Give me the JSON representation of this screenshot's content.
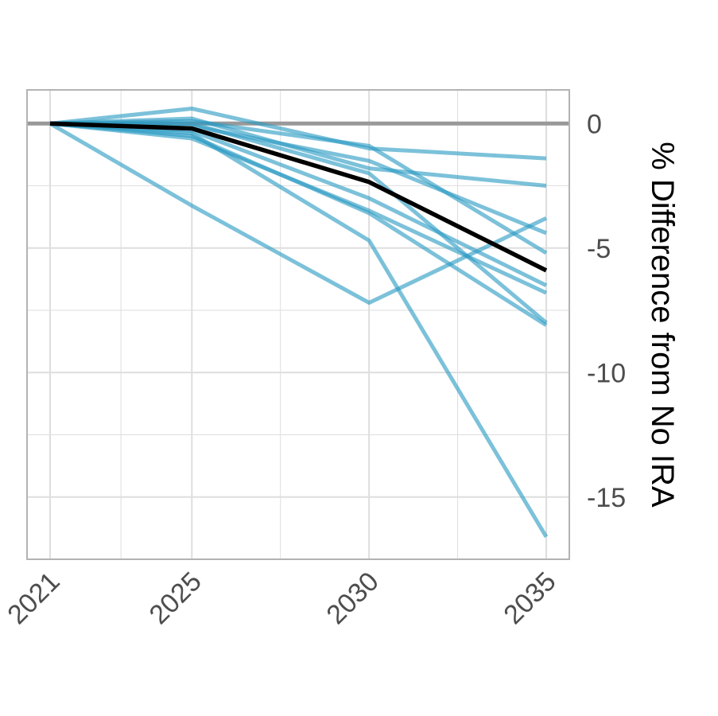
{
  "chart_data": {
    "type": "line",
    "title": "",
    "xlabel": "",
    "ylabel": "% Difference from No IRA",
    "x": [
      2021,
      2025,
      2030,
      2035
    ],
    "x_tick_labels": [
      "2021",
      "2025",
      "2030",
      "2035"
    ],
    "y_ticks": [
      0,
      -5,
      -10,
      -15
    ],
    "y_tick_labels": [
      "0",
      "-5",
      "-10",
      "-15"
    ],
    "xlim": [
      2020.35,
      2035.65
    ],
    "ylim": [
      -17.5,
      1.35
    ],
    "y_axis_position": "right",
    "grid": true,
    "legend": "none",
    "reference_line": {
      "y": 0,
      "color": "#999999"
    },
    "colors": {
      "models": "#2b9bc4",
      "average": "#000000",
      "grid": "#dedede",
      "frame": "#b3b3b3"
    },
    "series": [
      {
        "values": [
          0,
          0.6,
          -1.0,
          -1.4
        ]
      },
      {
        "values": [
          0,
          0.2,
          -1.8,
          -2.5
        ]
      },
      {
        "values": [
          0,
          -0.1,
          -1.5,
          -4.4
        ]
      },
      {
        "values": [
          0,
          0.1,
          -0.9,
          -5.2
        ]
      },
      {
        "values": [
          0,
          -0.3,
          -3.0,
          -6.5
        ]
      },
      {
        "values": [
          0,
          -0.6,
          -3.5,
          -6.8
        ]
      },
      {
        "values": [
          0,
          -0.5,
          -3.6,
          -8.1
        ]
      },
      {
        "values": [
          0,
          -0.4,
          -4.7,
          -16.6
        ]
      },
      {
        "values": [
          0,
          -3.3,
          -7.2,
          -3.8
        ]
      },
      {
        "values": [
          0,
          0.0,
          -2.0,
          -8.0
        ]
      }
    ],
    "average": {
      "values": [
        0,
        -0.2,
        -2.35,
        -5.9
      ]
    }
  }
}
